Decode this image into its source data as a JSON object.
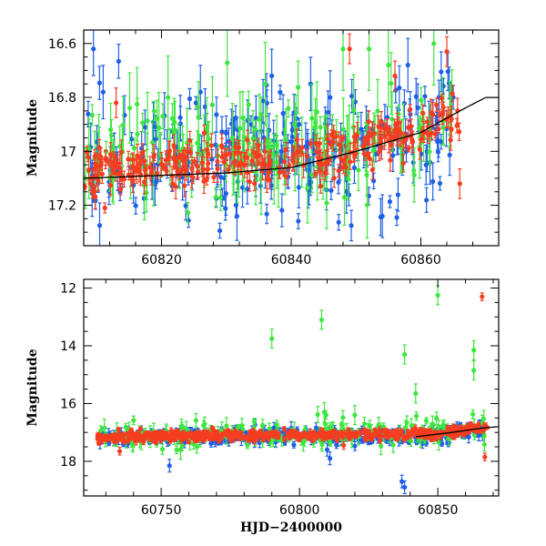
{
  "colors": {
    "blue": "#1f5fe6",
    "green": "#3ee63e",
    "red": "#f53d20",
    "axis": "#000000",
    "model": "#000000"
  },
  "chart_data": [
    {
      "type": "scatter",
      "panel": "top",
      "title": "",
      "xlabel": "",
      "ylabel": "Magnitude",
      "xlim": [
        60808,
        60872
      ],
      "ylim": [
        17.35,
        16.55
      ],
      "y_inverted": true,
      "xticks": [
        60820,
        60840,
        60860
      ],
      "yticks": [
        16.6,
        16.8,
        17,
        17.2
      ],
      "ytick_labels": [
        "16.6",
        "16.8",
        "17",
        "17.2"
      ],
      "grid": false,
      "legend": "none",
      "series": [
        {
          "color": "blue",
          "seed": 11,
          "count": 260,
          "x_range": [
            60808,
            60865
          ],
          "trend": [
            [
              60808,
              17.05
            ],
            [
              60850,
              17.02
            ],
            [
              60865,
              16.88
            ]
          ],
          "scatter": 0.12,
          "err_min": 0.02,
          "err_max": 0.09,
          "outliers": [
            [
              60809.5,
              16.62
            ],
            [
              60811,
              16.78
            ],
            [
              60826,
              16.78
            ],
            [
              60837,
              16.72
            ],
            [
              60843,
              16.75
            ],
            [
              60846,
              16.8
            ],
            [
              60858,
              16.68
            ]
          ]
        },
        {
          "color": "green",
          "seed": 23,
          "count": 170,
          "x_range": [
            60808,
            60865
          ],
          "trend": [
            [
              60808,
              17.02
            ],
            [
              60850,
              16.98
            ],
            [
              60865,
              16.85
            ]
          ],
          "scatter": 0.09,
          "err_min": 0.03,
          "err_max": 0.14,
          "outliers": [
            [
              60821,
              16.8
            ],
            [
              60836,
              16.75
            ],
            [
              60848,
              16.62
            ],
            [
              60852,
              16.62
            ],
            [
              60855,
              16.68
            ],
            [
              60862,
              16.6
            ]
          ]
        },
        {
          "color": "red",
          "seed": 37,
          "count": 300,
          "x_range": [
            60808,
            60866
          ],
          "trend": [
            [
              60808,
              17.08
            ],
            [
              60850,
              17.0
            ],
            [
              60866,
              16.85
            ]
          ],
          "scatter": 0.045,
          "err_min": 0.01,
          "err_max": 0.05,
          "outliers": [
            [
              60813,
              16.82
            ],
            [
              60849,
              16.62
            ],
            [
              60856,
              16.72
            ],
            [
              60864,
              16.63
            ],
            [
              60866,
              17.12
            ]
          ]
        }
      ],
      "model_curve": {
        "color": "model",
        "points": [
          [
            60808,
            17.1
          ],
          [
            60830,
            17.08
          ],
          [
            60840,
            17.06
          ],
          [
            60850,
            17.0
          ],
          [
            60860,
            16.93
          ],
          [
            60866,
            16.85
          ],
          [
            60870,
            16.8
          ],
          [
            60872,
            16.8
          ]
        ]
      }
    },
    {
      "type": "scatter",
      "panel": "bottom",
      "title": "",
      "xlabel": "HJD−2400000",
      "ylabel": "Magnitude",
      "xlim": [
        60722,
        60872
      ],
      "ylim": [
        19.2,
        11.7
      ],
      "y_inverted": true,
      "xticks": [
        60750,
        60800,
        60850
      ],
      "yticks": [
        12,
        14,
        16,
        18
      ],
      "ytick_labels": [
        "12",
        "14",
        "16",
        "18"
      ],
      "grid": false,
      "legend": "none",
      "series": [
        {
          "color": "blue",
          "seed": 41,
          "count": 420,
          "x_range": [
            60727,
            60867
          ],
          "trend": [
            [
              60727,
              17.15
            ],
            [
              60850,
              17.1
            ],
            [
              60867,
              16.9
            ]
          ],
          "scatter": 0.12,
          "err_min": 0.05,
          "err_max": 0.2,
          "outliers": [
            [
              60753,
              18.15
            ],
            [
              60797,
              16.85
            ],
            [
              60810,
              17.6
            ],
            [
              60811,
              17.9
            ],
            [
              60837,
              18.7
            ],
            [
              60838,
              18.9
            ]
          ]
        },
        {
          "color": "green",
          "seed": 53,
          "count": 180,
          "x_range": [
            60727,
            60867
          ],
          "trend": [
            [
              60727,
              17.1
            ],
            [
              60867,
              16.95
            ]
          ],
          "scatter": 0.25,
          "err_min": 0.1,
          "err_max": 0.3,
          "outliers": [
            [
              60790,
              13.75
            ],
            [
              60808,
              13.1
            ],
            [
              60838,
              14.3
            ],
            [
              60842,
              15.65
            ],
            [
              60850,
              12.25
            ],
            [
              60863,
              14.15
            ],
            [
              60863,
              14.85
            ],
            [
              60757,
              17.6
            ],
            [
              60809,
              16.3
            ],
            [
              60820,
              16.4
            ]
          ]
        },
        {
          "color": "red",
          "seed": 67,
          "count": 520,
          "x_range": [
            60727,
            60868
          ],
          "trend": [
            [
              60727,
              17.15
            ],
            [
              60850,
              17.05
            ],
            [
              60868,
              16.8
            ]
          ],
          "scatter": 0.08,
          "err_min": 0.03,
          "err_max": 0.12,
          "outliers": [
            [
              60866,
              12.3
            ],
            [
              60867,
              17.85
            ],
            [
              60735,
              17.65
            ],
            [
              60741,
              17.3
            ],
            [
              60816,
              17.45
            ]
          ]
        }
      ],
      "model_curve": {
        "color": "model",
        "points": [
          [
            60842,
            17.15
          ],
          [
            60855,
            17.0
          ],
          [
            60866,
            16.85
          ],
          [
            60872,
            16.8
          ]
        ]
      }
    }
  ]
}
